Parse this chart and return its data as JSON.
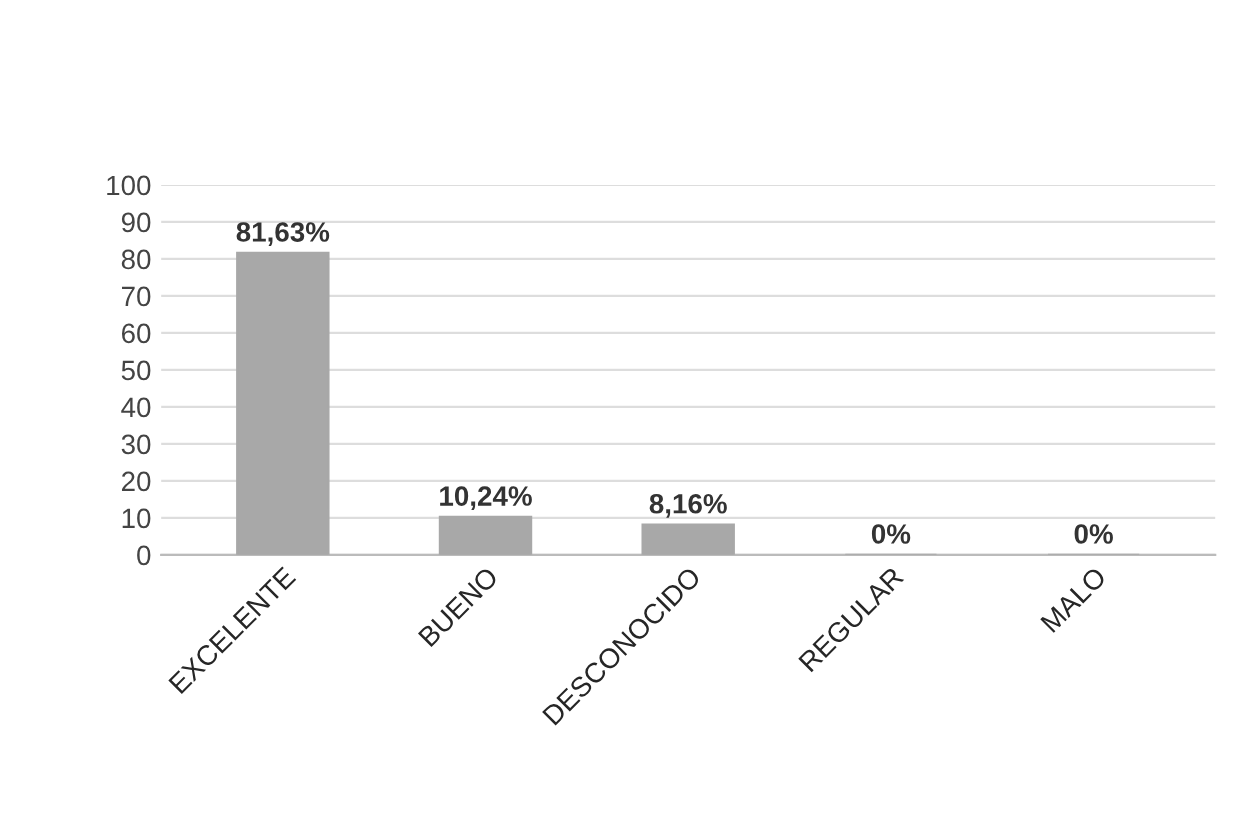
{
  "chart_data": {
    "type": "bar",
    "categories": [
      "EXCELENTE",
      "BUENO",
      "DESCONOCIDO",
      "REGULAR",
      "MALO"
    ],
    "values": [
      81.63,
      10.24,
      8.16,
      0,
      0
    ],
    "value_labels": [
      "81,63%",
      "10,24%",
      "8,16%",
      "0%",
      "0%"
    ],
    "color": "#a8a8a8",
    "ylim": [
      0,
      100
    ],
    "yticks": [
      0,
      10,
      20,
      30,
      40,
      50,
      60,
      70,
      80,
      90,
      100
    ],
    "grid": "y",
    "legend": false
  }
}
